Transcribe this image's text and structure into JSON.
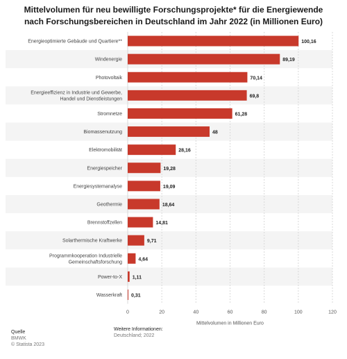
{
  "title_line1": "Mittelvolumen für neu bewilligte Forschungsprojekte* für die Energiewende",
  "title_line2": "nach Forschungsbereichen in Deutschland im Jahr 2022 (in Millionen Euro)",
  "footer": {
    "source_label": "Quelle",
    "source_value": "BMWK",
    "copyright": "© Statista 2023",
    "info_label": "Weitere Informationen:",
    "info_value": "Deutschland; 2022"
  },
  "colors": {
    "bar": "#c8392b",
    "grid": "#d9d9d9",
    "band": "#f4f4f4"
  },
  "chart_data": {
    "type": "bar",
    "orientation": "horizontal",
    "categories": [
      "Energieoptimierte Gebäude und Quartiere**",
      "Windenergie",
      "Photovoltaik",
      "Energieeffizienz in Industrie und Gewerbe, Handel und Dienstleistungen",
      "Stromnetze",
      "Biomassenutzung",
      "Elektromobilität",
      "Energiespeicher",
      "Energiesystemanalyse",
      "Geothermie",
      "Brennstoffzellen",
      "Solarthermische Kraftwerke",
      "Programmkooperation Industrielle Gemeinschaftsforschung",
      "Power-to-X",
      "Wasserkraft"
    ],
    "category_lines": [
      [
        "Energieoptimierte Gebäude und Quartiere**"
      ],
      [
        "Windenergie"
      ],
      [
        "Photovoltaik"
      ],
      [
        "Energieeffizienz in Industrie und Gewerbe,",
        "Handel und Dienstleistungen"
      ],
      [
        "Stromnetze"
      ],
      [
        "Biomassenutzung"
      ],
      [
        "Elektromobilität"
      ],
      [
        "Energiespeicher"
      ],
      [
        "Energiesystemanalyse"
      ],
      [
        "Geothermie"
      ],
      [
        "Brennstoffzellen"
      ],
      [
        "Solarthermische Kraftwerke"
      ],
      [
        "Programmkooperation Industrielle",
        "Gemeinschaftsforschung"
      ],
      [
        "Power-to-X"
      ],
      [
        "Wasserkraft"
      ]
    ],
    "values": [
      100.16,
      89.19,
      70.14,
      69.8,
      61.28,
      48,
      28.16,
      19.28,
      19.09,
      18.64,
      14.81,
      9.71,
      4.64,
      1.11,
      0.31
    ],
    "value_labels": [
      "100,16",
      "89,19",
      "70,14",
      "69,8",
      "61,28",
      "48",
      "28,16",
      "19,28",
      "19,09",
      "18,64",
      "14,81",
      "9,71",
      "4,64",
      "1,11",
      "0,31"
    ],
    "xlabel": "Mittelvolumen in Millionen Euro",
    "xlim": [
      0,
      120
    ],
    "xticks": [
      0,
      20,
      40,
      60,
      80,
      100,
      120
    ],
    "grid": true
  }
}
